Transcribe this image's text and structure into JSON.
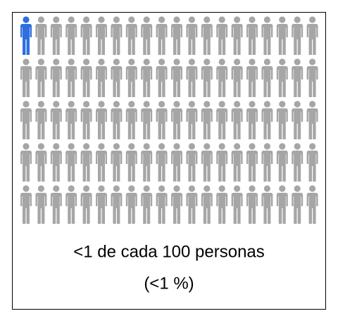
{
  "chart_data": {
    "type": "icon-array",
    "total": 100,
    "highlighted": 1,
    "color": "#a6a6a6",
    "highlight_color": "#2e6fdf",
    "caption": [
      "<1 de cada 100 personas",
      "(<1 %)"
    ]
  }
}
